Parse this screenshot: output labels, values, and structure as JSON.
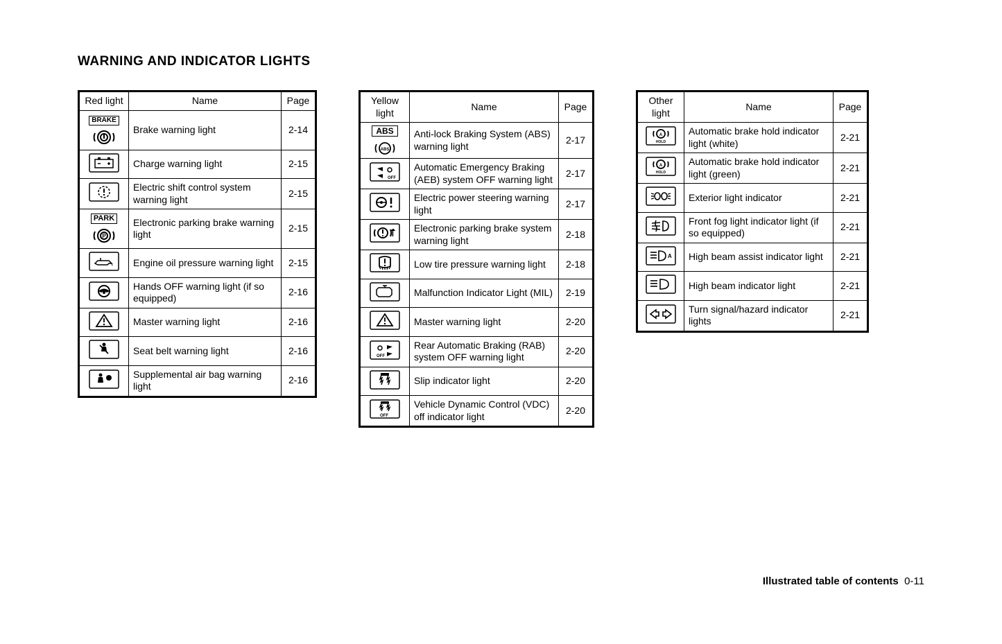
{
  "heading": "WARNING AND INDICATOR LIGHTS",
  "footer_label": "Illustrated table of contents",
  "footer_page": "0-11",
  "tables": {
    "red": {
      "header_icon": "Red light",
      "header_name": "Name",
      "header_page": "Page",
      "rows": [
        {
          "icon": "brake",
          "name": "Brake warning light",
          "page": "2-14"
        },
        {
          "icon": "battery",
          "name": "Charge warning light",
          "page": "2-15"
        },
        {
          "icon": "gear-excl",
          "name": "Electric shift control system warning light",
          "page": "2-15"
        },
        {
          "icon": "park",
          "name": "Electronic parking brake warning light",
          "page": "2-15"
        },
        {
          "icon": "oil",
          "name": "Engine oil pressure warning light",
          "page": "2-15"
        },
        {
          "icon": "steering",
          "name": "Hands OFF warning light (if so equipped)",
          "page": "2-16"
        },
        {
          "icon": "triangle",
          "name": "Master warning light",
          "page": "2-16"
        },
        {
          "icon": "seatbelt",
          "name": "Seat belt warning light",
          "page": "2-16"
        },
        {
          "icon": "airbag",
          "name": "Supplemental air bag warning light",
          "page": "2-16"
        }
      ]
    },
    "yellow": {
      "header_icon": "Yellow light",
      "header_name": "Name",
      "header_page": "Page",
      "rows": [
        {
          "icon": "abs",
          "name": "Anti-lock Braking System (ABS) warning light",
          "page": "2-17"
        },
        {
          "icon": "aeb-off",
          "name": "Automatic Emergency Braking (AEB) system OFF warning light",
          "page": "2-17"
        },
        {
          "icon": "eps",
          "name": "Electric power steering warning light",
          "page": "2-17"
        },
        {
          "icon": "epb-sys",
          "name": "Electronic parking brake system warning light",
          "page": "2-18"
        },
        {
          "icon": "tpms",
          "name": "Low tire pressure warning light",
          "page": "2-18"
        },
        {
          "icon": "mil",
          "name": "Malfunction Indicator Light (MIL)",
          "page": "2-19"
        },
        {
          "icon": "triangle",
          "name": "Master warning light",
          "page": "2-20"
        },
        {
          "icon": "rab-off",
          "name": "Rear Automatic Braking (RAB) system OFF warning light",
          "page": "2-20"
        },
        {
          "icon": "slip",
          "name": "Slip indicator light",
          "page": "2-20"
        },
        {
          "icon": "vdc-off",
          "name": "Vehicle Dynamic Control (VDC) off indicator light",
          "page": "2-20"
        }
      ]
    },
    "other": {
      "header_icon": "Other light",
      "header_name": "Name",
      "header_page": "Page",
      "rows": [
        {
          "icon": "hold",
          "name": "Automatic brake hold indicator light (white)",
          "page": "2-21"
        },
        {
          "icon": "hold",
          "name": "Automatic brake hold indicator light (green)",
          "page": "2-21"
        },
        {
          "icon": "exterior",
          "name": "Exterior light indicator",
          "page": "2-21"
        },
        {
          "icon": "fog",
          "name": "Front fog light indicator light (if so equipped)",
          "page": "2-21"
        },
        {
          "icon": "hba",
          "name": "High beam assist indicator light",
          "page": "2-21"
        },
        {
          "icon": "highbeam",
          "name": "High beam indicator light",
          "page": "2-21"
        },
        {
          "icon": "turn",
          "name": "Turn signal/hazard indicator lights",
          "page": "2-21"
        }
      ]
    }
  }
}
